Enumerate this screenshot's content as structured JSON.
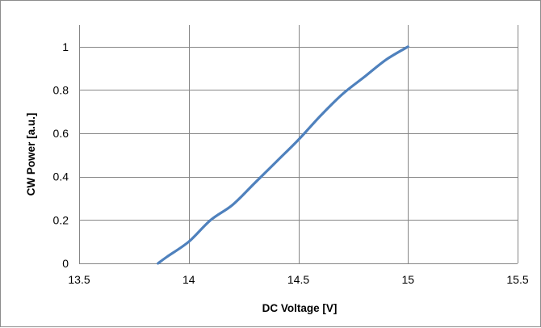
{
  "chart_data": {
    "type": "line",
    "title": "",
    "xlabel": "DC Voltage [V]",
    "ylabel": "CW Power [a.u.]",
    "xlim": [
      13.5,
      15.5
    ],
    "ylim": [
      0,
      1.1
    ],
    "xticks": [
      13.5,
      14,
      14.5,
      15,
      15.5
    ],
    "xtick_labels": [
      "13.5",
      "14",
      "14.5",
      "15",
      "15.5"
    ],
    "yticks": [
      0,
      0.2,
      0.4,
      0.6,
      0.8,
      1
    ],
    "ytick_labels": [
      "0",
      "0.2",
      "0.4",
      "0.6",
      "0.8",
      "1"
    ],
    "grid": true,
    "legend": "none",
    "series": [
      {
        "color": "#4f81bd",
        "x": [
          13.86,
          13.9,
          14.0,
          14.1,
          14.2,
          14.3,
          14.4,
          14.5,
          14.6,
          14.7,
          14.8,
          14.9,
          15.0
        ],
        "y": [
          0.0,
          0.03,
          0.1,
          0.2,
          0.27,
          0.37,
          0.47,
          0.57,
          0.68,
          0.78,
          0.86,
          0.94,
          1.0
        ]
      }
    ]
  }
}
